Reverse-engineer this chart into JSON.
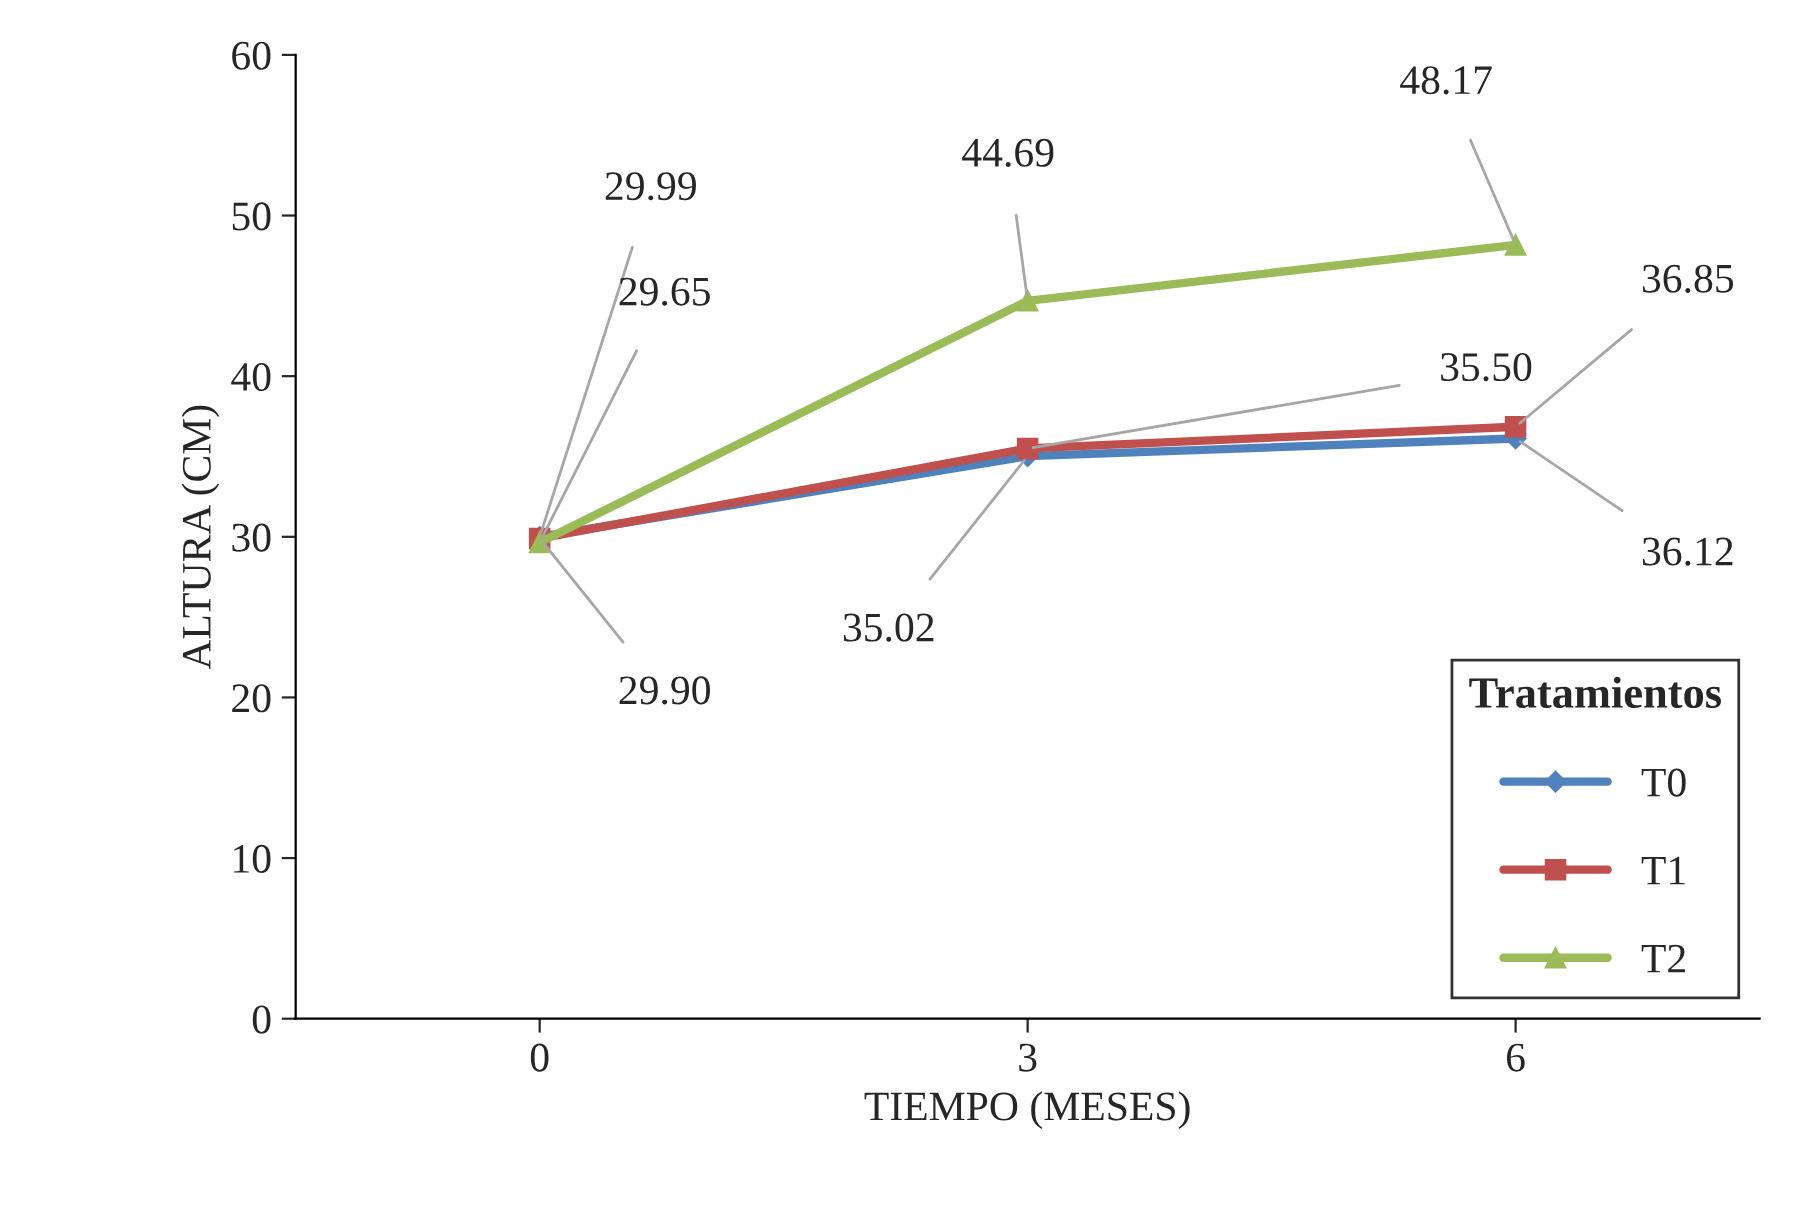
{
  "chart_data": {
    "type": "line",
    "xlabel": "TIEMPO (MESES)",
    "ylabel": "ALTURA (CM)",
    "categories": [
      "0",
      "3",
      "6"
    ],
    "ylim": [
      0,
      60
    ],
    "yticks": [
      0,
      10,
      20,
      30,
      40,
      50,
      60
    ],
    "grid": false,
    "legend": "bottom right",
    "legend_title": "Tratamientos",
    "data_labels": true,
    "series": [
      {
        "name": "T0",
        "color": "#4f81bd",
        "marker": "diamond",
        "values": [
          29.99,
          35.02,
          36.12
        ],
        "value_labels": [
          "29.99",
          "35.02",
          "36.12"
        ]
      },
      {
        "name": "T1",
        "color": "#c0504d",
        "marker": "square",
        "values": [
          29.9,
          35.5,
          36.85
        ],
        "value_labels": [
          "29.90",
          "35.50",
          "36.85"
        ]
      },
      {
        "name": "T2",
        "color": "#9bbb59",
        "marker": "triangle",
        "values": [
          29.65,
          44.69,
          48.17
        ],
        "value_labels": [
          "29.65",
          "44.69",
          "48.17"
        ]
      }
    ]
  }
}
